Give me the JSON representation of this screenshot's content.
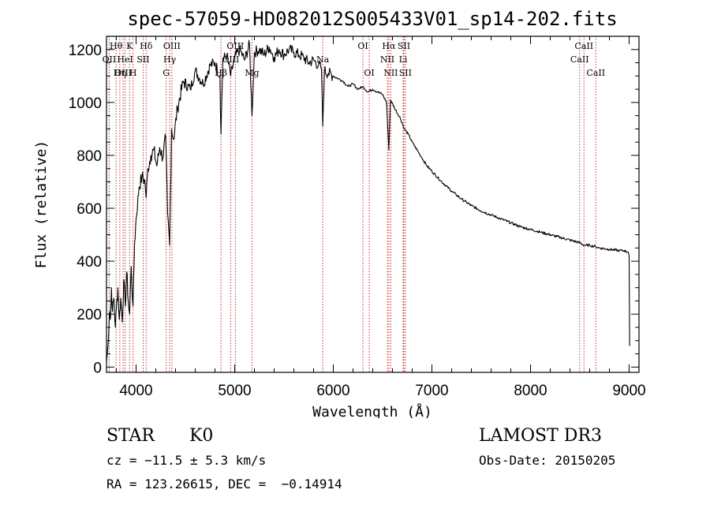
{
  "chart_data": {
    "type": "line",
    "title": "spec-57059-HD082012S005433V01_sp14-202.fits",
    "xlabel": "Wavelength (Å)",
    "ylabel": "Flux (relative)",
    "xlim": [
      3700,
      9100
    ],
    "ylim": [
      -20,
      1250
    ],
    "xticks": [
      4000,
      5000,
      6000,
      7000,
      8000,
      9000
    ],
    "yticks": [
      0,
      200,
      400,
      600,
      800,
      1000,
      1200
    ],
    "spectral_lines": [
      {
        "label": "Hθ",
        "wavelength": 3797,
        "row": 0
      },
      {
        "label": "OII",
        "wavelength": 3727,
        "row": 1
      },
      {
        "label": "OIII",
        "wavelength": 3869,
        "row": 2
      },
      {
        "label": "K",
        "wavelength": 3934,
        "row": 0
      },
      {
        "label": "HeI",
        "wavelength": 3889,
        "row": 1
      },
      {
        "label": "Hη",
        "wavelength": 3835,
        "row": 2
      },
      {
        "label": "H",
        "wavelength": 3969,
        "row": 2
      },
      {
        "label": "Hδ",
        "wavelength": 4102,
        "row": 0
      },
      {
        "label": "SII",
        "wavelength": 4072,
        "row": 1
      },
      {
        "label": "OIII",
        "wavelength": 4363,
        "row": 0
      },
      {
        "label": "Hγ",
        "wavelength": 4341,
        "row": 1
      },
      {
        "label": "G",
        "wavelength": 4305,
        "row": 2
      },
      {
        "label": "OIII",
        "wavelength": 5007,
        "row": 0
      },
      {
        "label": "OIII",
        "wavelength": 4959,
        "row": 1
      },
      {
        "label": "Hβ",
        "wavelength": 4861,
        "row": 2
      },
      {
        "label": "Mg",
        "wavelength": 5175,
        "row": 2
      },
      {
        "label": "Na",
        "wavelength": 5893,
        "row": 1
      },
      {
        "label": "OI",
        "wavelength": 6300,
        "row": 0
      },
      {
        "label": "OI",
        "wavelength": 6364,
        "row": 2
      },
      {
        "label": "Hα",
        "wavelength": 6563,
        "row": 0
      },
      {
        "label": "SII",
        "wavelength": 6716,
        "row": 0
      },
      {
        "label": "NII",
        "wavelength": 6548,
        "row": 1
      },
      {
        "label": "Li",
        "wavelength": 6708,
        "row": 1
      },
      {
        "label": "NII",
        "wavelength": 6583,
        "row": 2
      },
      {
        "label": "SII",
        "wavelength": 6731,
        "row": 2
      },
      {
        "label": "CaII",
        "wavelength": 8542,
        "row": 0
      },
      {
        "label": "CaII",
        "wavelength": 8498,
        "row": 1
      },
      {
        "label": "CaII",
        "wavelength": 8662,
        "row": 2
      }
    ],
    "series": [
      {
        "name": "flux",
        "x": [
          3700,
          3715,
          3730,
          3740,
          3750,
          3760,
          3775,
          3790,
          3800,
          3815,
          3830,
          3845,
          3860,
          3875,
          3890,
          3905,
          3920,
          3934,
          3950,
          3969,
          3985,
          4000,
          4030,
          4060,
          4090,
          4102,
          4120,
          4150,
          4180,
          4210,
          4240,
          4270,
          4300,
          4320,
          4340,
          4360,
          4380,
          4420,
          4480,
          4550,
          4600,
          4680,
          4750,
          4800,
          4850,
          4861,
          4880,
          4920,
          4960,
          5000,
          5050,
          5100,
          5150,
          5175,
          5200,
          5250,
          5300,
          5350,
          5400,
          5450,
          5500,
          5550,
          5600,
          5650,
          5700,
          5750,
          5800,
          5850,
          5880,
          5893,
          5910,
          5950,
          6000,
          6050,
          6100,
          6150,
          6200,
          6250,
          6300,
          6350,
          6400,
          6450,
          6500,
          6540,
          6563,
          6580,
          6620,
          6680,
          6720,
          6760,
          6800,
          6850,
          6900,
          6950,
          7000,
          7100,
          7200,
          7300,
          7400,
          7500,
          7600,
          7700,
          7800,
          7900,
          8000,
          8100,
          8200,
          8300,
          8400,
          8498,
          8542,
          8600,
          8662,
          8700,
          8800,
          8900,
          8950,
          8990,
          9000,
          9005
        ],
        "values": [
          20,
          80,
          210,
          180,
          300,
          210,
          260,
          150,
          220,
          300,
          180,
          260,
          170,
          330,
          230,
          360,
          250,
          200,
          380,
          230,
          470,
          560,
          680,
          720,
          700,
          640,
          750,
          800,
          820,
          760,
          830,
          790,
          870,
          580,
          460,
          900,
          860,
          980,
          1080,
          1050,
          1120,
          1070,
          1140,
          1150,
          1100,
          880,
          1160,
          1180,
          1100,
          1170,
          1200,
          1160,
          1220,
          950,
          1190,
          1200,
          1180,
          1210,
          1170,
          1200,
          1180,
          1200,
          1190,
          1180,
          1170,
          1150,
          1160,
          1140,
          1130,
          910,
          1120,
          1110,
          1100,
          1090,
          1080,
          1060,
          1070,
          1050,
          1060,
          1040,
          1050,
          1040,
          1030,
          1000,
          820,
          1010,
          980,
          940,
          900,
          880,
          850,
          820,
          790,
          760,
          740,
          700,
          665,
          635,
          610,
          590,
          575,
          560,
          545,
          530,
          520,
          510,
          500,
          490,
          480,
          470,
          460,
          460,
          455,
          450,
          445,
          440,
          440,
          435,
          420,
          80
        ]
      }
    ]
  },
  "info": {
    "object_type": "STAR",
    "subclass": "K0",
    "survey": "LAMOST DR3",
    "redshift_line": "cz = −11.5 ± 5.3 km/s",
    "obs_date_line": "Obs-Date: 20150205",
    "coords_line": "RA = 123.26615, DEC =  −0.14914"
  }
}
